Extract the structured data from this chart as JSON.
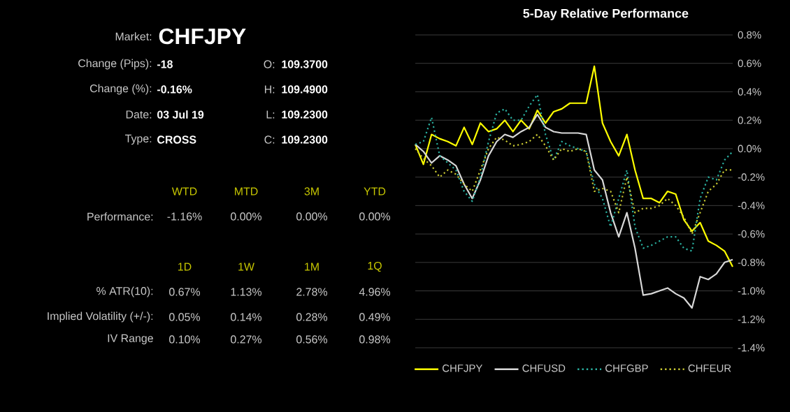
{
  "chart_data": [
    {
      "type": "other",
      "annotations": [
        "Market:",
        "CHFJPY",
        "Change (Pips):",
        "-18",
        "O:",
        "109.3700",
        "Change (%):",
        "-0.16%",
        "H:",
        "109.4900",
        "Date:",
        "03 Jul 19",
        "L:",
        "109.2300",
        "Type:",
        "CROSS",
        "C:",
        "109.2300",
        "WTD",
        "MTD",
        "3M",
        "YTD",
        "Performance:",
        "-1.16%",
        "0.00%",
        "0.00%",
        "0.00%",
        "1D",
        "1W",
        "1M",
        "1Q",
        "% ATR(10):",
        "0.67%",
        "1.13%",
        "2.78%",
        "4.96%",
        "Implied Volatility (+/-):",
        "0.05%",
        "0.14%",
        "0.28%",
        "0.49%",
        "IV Range",
        "0.10%",
        "0.27%",
        "0.56%",
        "0.98%"
      ]
    },
    {
      "type": "line",
      "title": "5-Day Relative Performance",
      "categories": [
        null,
        null,
        null,
        null,
        null,
        null,
        null,
        null,
        null,
        null,
        null,
        null,
        null,
        null,
        null,
        null,
        null,
        null,
        null,
        null,
        null,
        null,
        null,
        null,
        null,
        null,
        null,
        null,
        null,
        null,
        null,
        null,
        null,
        null,
        null,
        null,
        null,
        null,
        null,
        null
      ],
      "series": [
        {
          "name": "CHFJPY",
          "color": "#ffff00",
          "line_style": "solid",
          "values": [
            0.03,
            -0.11,
            0.1,
            0.07,
            0.05,
            0.02,
            0.15,
            0.03,
            0.18,
            0.12,
            0.14,
            0.2,
            0.12,
            0.2,
            0.14,
            0.27,
            0.18,
            0.26,
            0.28,
            0.32,
            0.32,
            0.32,
            0.58,
            0.18,
            0.05,
            -0.05,
            0.1,
            -0.15,
            -0.35,
            -0.35,
            -0.38,
            -0.3,
            -0.32,
            -0.5,
            -0.58,
            -0.52,
            -0.65,
            -0.68,
            -0.72,
            -0.83
          ]
        },
        {
          "name": "CHFUSD",
          "color": "#d8d8d8",
          "line_style": "solid",
          "values": [
            0.03,
            -0.02,
            -0.1,
            -0.05,
            -0.08,
            -0.12,
            -0.25,
            -0.35,
            -0.22,
            -0.05,
            0.05,
            0.1,
            0.08,
            0.12,
            0.15,
            0.24,
            0.15,
            0.12,
            0.11,
            0.11,
            0.11,
            0.1,
            -0.15,
            -0.22,
            -0.45,
            -0.62,
            -0.45,
            -0.7,
            -1.03,
            -1.02,
            -1.0,
            -0.98,
            -1.02,
            -1.05,
            -1.12,
            -0.9,
            -0.92,
            -0.88,
            -0.8,
            -0.78
          ]
        },
        {
          "name": "CHFGBP",
          "color": "#2ab0a0",
          "line_style": "dotted",
          "values": [
            0.03,
            0.05,
            0.22,
            -0.05,
            -0.1,
            -0.15,
            -0.3,
            -0.37,
            -0.2,
            0.05,
            0.25,
            0.28,
            0.2,
            0.2,
            0.3,
            0.38,
            0.1,
            -0.08,
            0.05,
            0.02,
            0.0,
            -0.02,
            -0.25,
            -0.35,
            -0.55,
            -0.35,
            -0.15,
            -0.55,
            -0.7,
            -0.68,
            -0.65,
            -0.62,
            -0.62,
            -0.7,
            -0.72,
            -0.35,
            -0.2,
            -0.22,
            -0.08,
            -0.02
          ]
        },
        {
          "name": "CHFEUR",
          "color": "#c8c832",
          "line_style": "dotted",
          "values": [
            0.0,
            -0.07,
            -0.12,
            -0.2,
            -0.15,
            -0.18,
            -0.25,
            -0.3,
            -0.15,
            0.0,
            0.08,
            0.06,
            0.02,
            0.03,
            0.05,
            0.1,
            0.02,
            -0.08,
            0.0,
            -0.02,
            0.0,
            -0.02,
            -0.3,
            -0.28,
            -0.3,
            -0.45,
            -0.2,
            -0.45,
            -0.42,
            -0.42,
            -0.4,
            -0.35,
            -0.4,
            -0.48,
            -0.6,
            -0.45,
            -0.3,
            -0.25,
            -0.15,
            -0.15
          ]
        }
      ],
      "ylim": [
        -1.4,
        0.8
      ],
      "yticks": [
        {
          "value": 0.8,
          "label": "0.8%"
        },
        {
          "value": 0.6,
          "label": "0.6%"
        },
        {
          "value": 0.4,
          "label": "0.4%"
        },
        {
          "value": 0.2,
          "label": "0.2%"
        },
        {
          "value": 0.0,
          "label": "0.0%"
        },
        {
          "value": -0.2,
          "label": "-0.2%"
        },
        {
          "value": -0.4,
          "label": "-0.4%"
        },
        {
          "value": -0.6,
          "label": "-0.6%"
        },
        {
          "value": -0.8,
          "label": "-0.8%"
        },
        {
          "value": -1.0,
          "label": "-1.0%"
        },
        {
          "value": -1.2,
          "label": "-1.2%"
        },
        {
          "value": -1.4,
          "label": "-1.4%"
        }
      ],
      "grid": "y",
      "legend": "bottom",
      "tick_labels": "y",
      "marker": "none"
    }
  ]
}
